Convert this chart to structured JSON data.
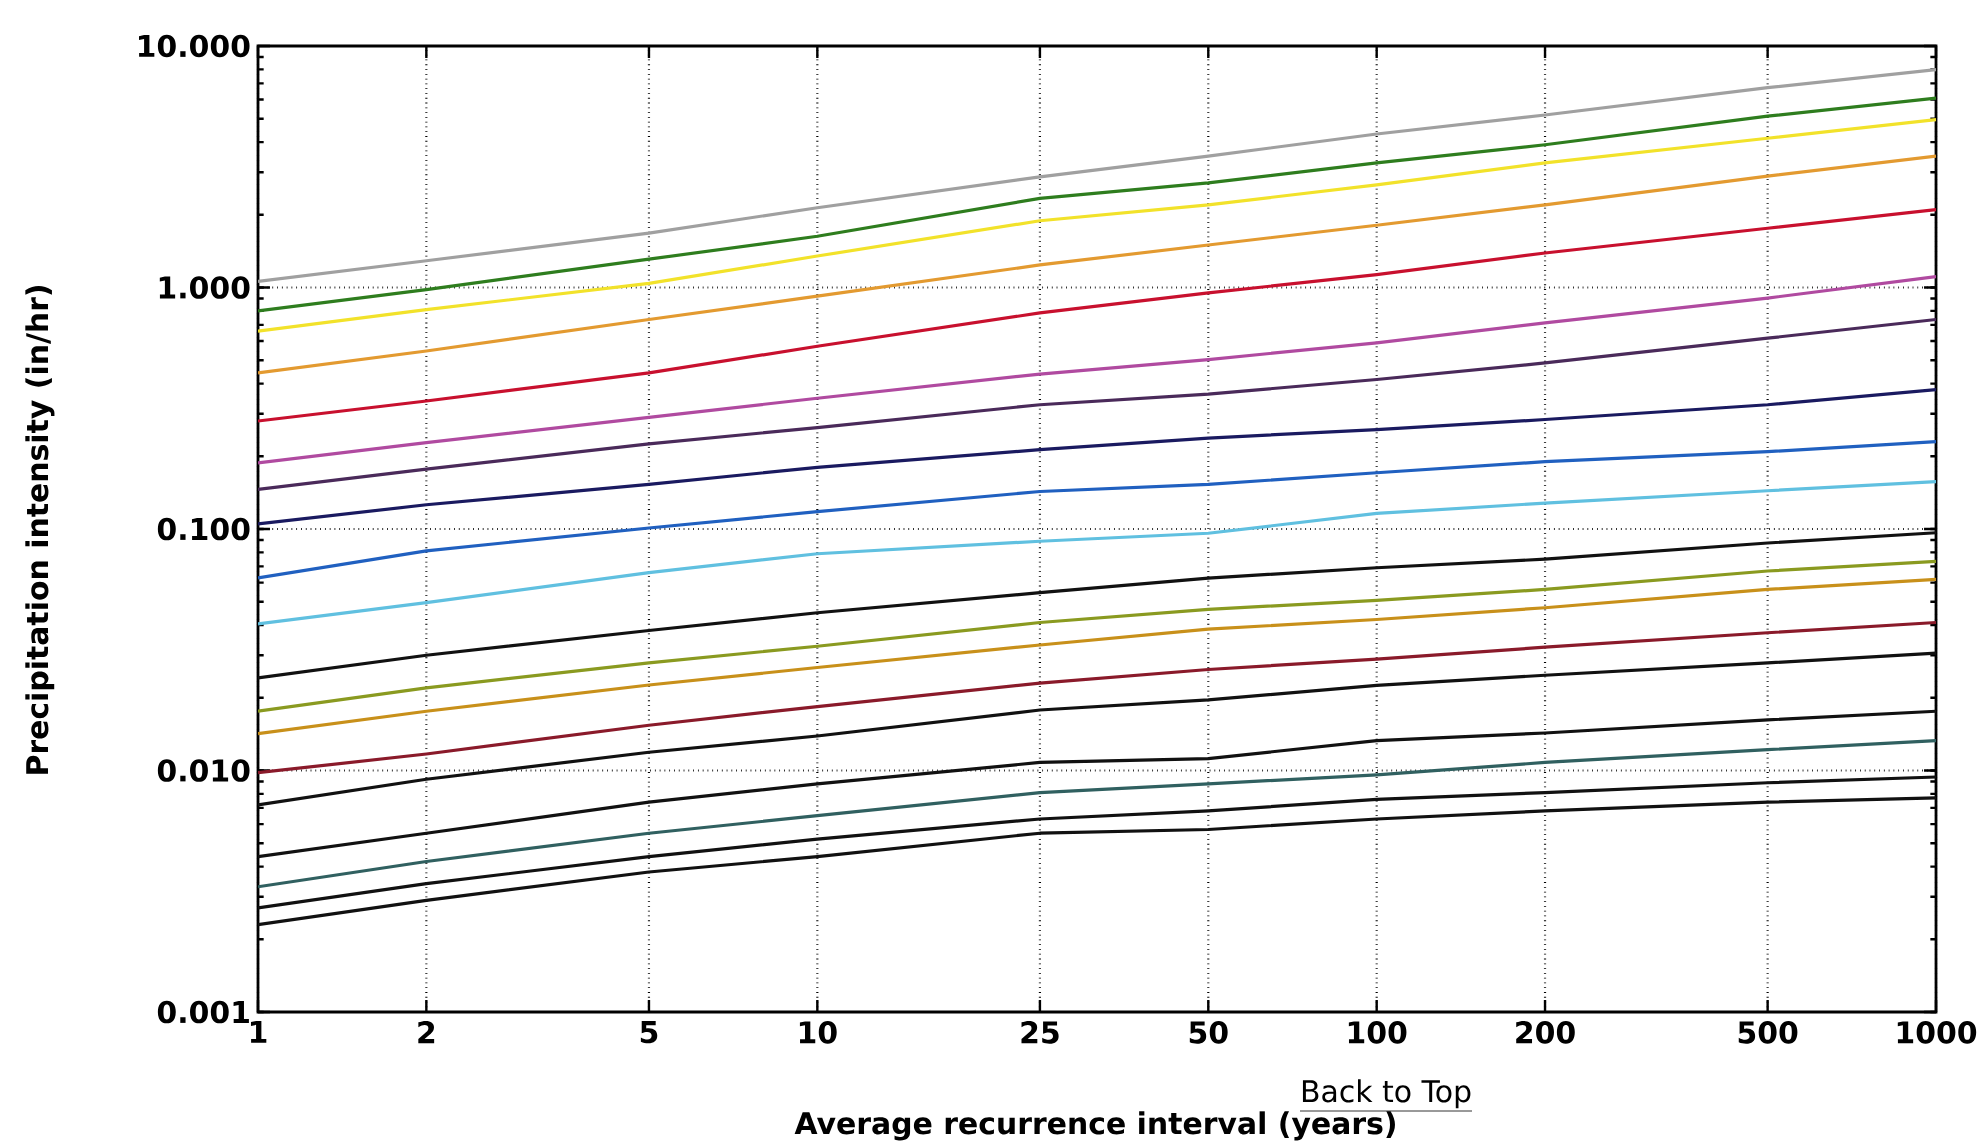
{
  "chart_data": {
    "type": "line",
    "xlabel": "Average recurrence interval (years)",
    "ylabel": "Precipitation intensity (in/hr)",
    "annotations": [
      "Back to Top"
    ],
    "x": [
      1,
      2,
      5,
      10,
      25,
      50,
      100,
      200,
      500,
      1000
    ],
    "xlim": [
      1,
      1000
    ],
    "xticks": [
      1,
      2,
      5,
      10,
      25,
      50,
      100,
      200,
      500,
      1000
    ],
    "ylim": [
      0.001,
      10
    ],
    "yticks": [
      {
        "value": 0.001,
        "label": "0.001"
      },
      {
        "value": 0.01,
        "label": "0.010"
      },
      {
        "value": 0.1,
        "label": "0.100"
      },
      {
        "value": 1,
        "label": "1.000"
      },
      {
        "value": 10,
        "label": "10.000"
      }
    ],
    "log": "xy",
    "grid": true,
    "marker": "none",
    "line_style": "solid",
    "series": [
      {
        "color": "#a0a0a0",
        "values": [
          1.06,
          1.29,
          1.68,
          2.14,
          2.87,
          3.5,
          4.32,
          5.18,
          6.72,
          7.99
        ]
      },
      {
        "color": "#2e7d1e",
        "values": [
          0.8,
          0.98,
          1.31,
          1.63,
          2.34,
          2.71,
          3.28,
          3.9,
          5.12,
          6.08
        ]
      },
      {
        "color": "#f2e22a",
        "values": [
          0.66,
          0.81,
          1.04,
          1.35,
          1.89,
          2.2,
          2.66,
          3.28,
          4.15,
          4.96
        ]
      },
      {
        "color": "#e39a30",
        "values": [
          0.443,
          0.546,
          0.737,
          0.921,
          1.24,
          1.5,
          1.81,
          2.2,
          2.89,
          3.5
        ]
      },
      {
        "color": "#c8102e",
        "values": [
          0.28,
          0.339,
          0.443,
          0.571,
          0.785,
          0.95,
          1.13,
          1.39,
          1.76,
          2.1
        ]
      },
      {
        "color": "#b04aa0",
        "values": [
          0.188,
          0.228,
          0.29,
          0.348,
          0.438,
          0.503,
          0.59,
          0.714,
          0.904,
          1.11
        ]
      },
      {
        "color": "#4a2a5a",
        "values": [
          0.146,
          0.177,
          0.225,
          0.263,
          0.327,
          0.362,
          0.416,
          0.487,
          0.617,
          0.737
        ]
      },
      {
        "color": "#1a1a60",
        "values": [
          0.105,
          0.126,
          0.153,
          0.18,
          0.213,
          0.238,
          0.258,
          0.284,
          0.327,
          0.378
        ]
      },
      {
        "color": "#2060c0",
        "values": [
          0.0627,
          0.0812,
          0.101,
          0.118,
          0.143,
          0.153,
          0.171,
          0.19,
          0.209,
          0.23
        ]
      },
      {
        "color": "#60c0e0",
        "values": [
          0.0405,
          0.0496,
          0.066,
          0.079,
          0.089,
          0.096,
          0.116,
          0.128,
          0.144,
          0.157
        ]
      },
      {
        "color": "#111111",
        "values": [
          0.0242,
          0.03,
          0.038,
          0.045,
          0.0545,
          0.0626,
          0.0691,
          0.075,
          0.0875,
          0.0965
        ]
      },
      {
        "color": "#8a9a20",
        "values": [
          0.0176,
          0.022,
          0.0279,
          0.0327,
          0.041,
          0.0465,
          0.0506,
          0.0562,
          0.067,
          0.0734
        ]
      },
      {
        "color": "#c8901a",
        "values": [
          0.0142,
          0.0176,
          0.0226,
          0.0267,
          0.0331,
          0.0385,
          0.0422,
          0.0472,
          0.0562,
          0.0619
        ]
      },
      {
        "color": "#8a1a2a",
        "values": [
          0.0098,
          0.0117,
          0.0154,
          0.0184,
          0.023,
          0.0262,
          0.0289,
          0.0324,
          0.0372,
          0.041
        ]
      },
      {
        "color": "#111111",
        "values": [
          0.0072,
          0.0092,
          0.0119,
          0.0139,
          0.0178,
          0.0196,
          0.0225,
          0.0248,
          0.0279,
          0.0306
        ]
      },
      {
        "color": "#111111",
        "values": [
          0.0044,
          0.0055,
          0.0074,
          0.0088,
          0.0108,
          0.0112,
          0.0133,
          0.0143,
          0.0162,
          0.0176
        ]
      },
      {
        "color": "#306060",
        "values": [
          0.0033,
          0.0042,
          0.0055,
          0.0065,
          0.0081,
          0.0088,
          0.0096,
          0.0108,
          0.0122,
          0.0133
        ]
      },
      {
        "color": "#111111",
        "values": [
          0.0027,
          0.0034,
          0.0044,
          0.0052,
          0.0063,
          0.0068,
          0.0076,
          0.0081,
          0.0089,
          0.0094
        ]
      },
      {
        "color": "#111111",
        "values": [
          0.0023,
          0.0029,
          0.0038,
          0.0044,
          0.0055,
          0.0057,
          0.0063,
          0.0068,
          0.0074,
          0.0077
        ]
      }
    ]
  }
}
